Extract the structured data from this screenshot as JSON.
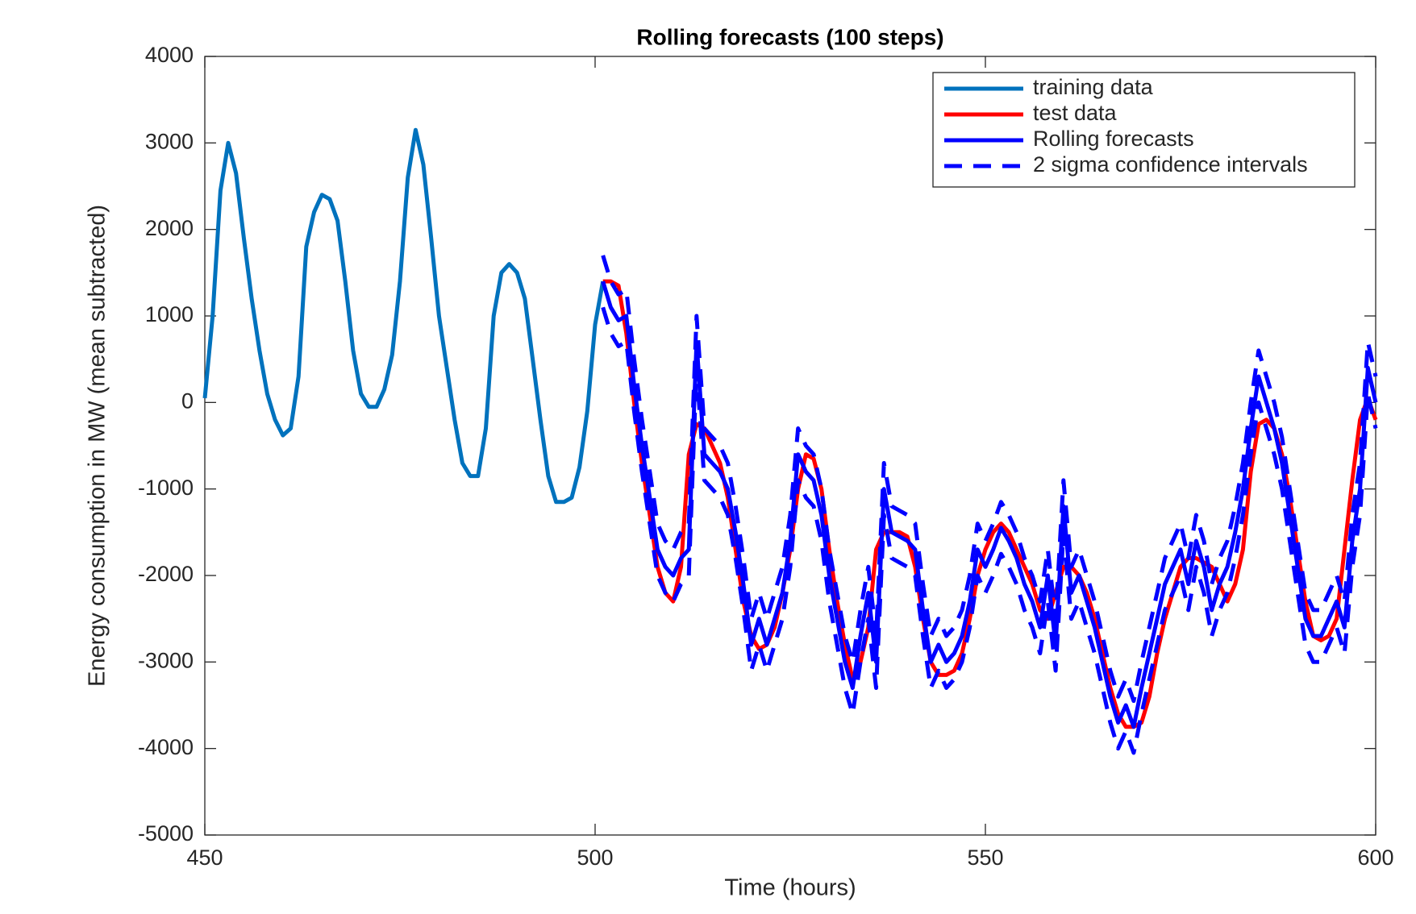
{
  "chart_data": {
    "type": "line",
    "title": "Rolling forecasts (100 steps)",
    "x_label": "Time (hours)",
    "y_label": "Energy consumption in MW (mean subtracted)",
    "xlim": [
      450,
      600
    ],
    "xticks": [
      450,
      500,
      550,
      600
    ],
    "ylim": [
      -5000,
      4000
    ],
    "yticks": [
      -5000,
      -4000,
      -3000,
      -2000,
      -1000,
      0,
      1000,
      2000,
      3000,
      4000
    ],
    "legend": "top-right",
    "x": [
      450,
      451,
      452,
      453,
      454,
      455,
      456,
      457,
      458,
      459,
      460,
      461,
      462,
      463,
      464,
      465,
      466,
      467,
      468,
      469,
      470,
      471,
      472,
      473,
      474,
      475,
      476,
      477,
      478,
      479,
      480,
      481,
      482,
      483,
      484,
      485,
      486,
      487,
      488,
      489,
      490,
      491,
      492,
      493,
      494,
      495,
      496,
      497,
      498,
      499,
      500,
      501,
      502,
      503,
      504,
      505,
      506,
      507,
      508,
      509,
      510,
      511,
      512,
      513,
      514,
      515,
      516,
      517,
      518,
      519,
      520,
      521,
      522,
      523,
      524,
      525,
      526,
      527,
      528,
      529,
      530,
      531,
      532,
      533,
      534,
      535,
      536,
      537,
      538,
      539,
      540,
      541,
      542,
      543,
      544,
      545,
      546,
      547,
      548,
      549,
      550,
      551,
      552,
      553,
      554,
      555,
      556,
      557,
      558,
      559,
      560,
      561,
      562,
      563,
      564,
      565,
      566,
      567,
      568,
      569,
      570,
      571,
      572,
      573,
      574,
      575,
      576,
      577,
      578,
      579,
      580,
      581,
      582,
      583,
      584,
      585,
      586,
      587,
      588,
      589,
      590,
      591,
      592,
      593,
      594,
      595,
      596,
      597,
      598,
      599,
      600
    ],
    "series": [
      {
        "name": "training data",
        "color": "#0072bd",
        "style": "solid",
        "values": [
          50,
          1000,
          2450,
          3000,
          2650,
          1900,
          1200,
          600,
          100,
          -200,
          -380,
          -300,
          300,
          1800,
          2200,
          2400,
          2350,
          2100,
          1400,
          600,
          100,
          -50,
          -50,
          150,
          550,
          1400,
          2600,
          3150,
          2750,
          1900,
          1000,
          400,
          -200,
          -700,
          -850,
          -850,
          -300,
          1000,
          1500,
          1600,
          1500,
          1200,
          500,
          -200,
          -850,
          -1150,
          -1150,
          -1100,
          -750,
          -100,
          900,
          1400,
          null,
          null,
          null,
          null,
          null,
          null,
          null,
          null,
          null,
          null,
          null,
          null,
          null,
          null,
          null,
          null,
          null,
          null,
          null,
          null,
          null,
          null,
          null,
          null,
          null,
          null,
          null,
          null,
          null,
          null,
          null,
          null,
          null,
          null,
          null,
          null,
          null,
          null,
          null,
          null,
          null,
          null,
          null,
          null,
          null,
          null,
          null,
          null,
          null,
          null,
          null,
          null,
          null,
          null,
          null,
          null,
          null,
          null,
          null,
          null,
          null,
          null,
          null,
          null,
          null,
          null,
          null,
          null,
          null,
          null,
          null,
          null,
          null,
          null,
          null,
          null,
          null,
          null,
          null,
          null,
          null,
          null,
          null,
          null,
          null,
          null,
          null,
          null,
          null,
          null,
          null,
          null,
          null,
          null,
          null,
          null,
          null,
          null,
          null
        ]
      },
      {
        "name": "test data",
        "color": "#ff0000",
        "style": "solid",
        "values": [
          null,
          null,
          null,
          null,
          null,
          null,
          null,
          null,
          null,
          null,
          null,
          null,
          null,
          null,
          null,
          null,
          null,
          null,
          null,
          null,
          null,
          null,
          null,
          null,
          null,
          null,
          null,
          null,
          null,
          null,
          null,
          null,
          null,
          null,
          null,
          null,
          null,
          null,
          null,
          null,
          null,
          null,
          null,
          null,
          null,
          null,
          null,
          null,
          null,
          null,
          null,
          1400,
          1400,
          1350,
          800,
          0,
          -700,
          -1300,
          -1900,
          -2200,
          -2300,
          -1900,
          -600,
          -250,
          -300,
          -500,
          -700,
          -1100,
          -1700,
          -2300,
          -2700,
          -2850,
          -2800,
          -2600,
          -2200,
          -1700,
          -1000,
          -600,
          -650,
          -1000,
          -1700,
          -2300,
          -2800,
          -3200,
          -3000,
          -2600,
          -1700,
          -1500,
          -1500,
          -1500,
          -1550,
          -1900,
          -2500,
          -3000,
          -3150,
          -3150,
          -3100,
          -2900,
          -2500,
          -2000,
          -1700,
          -1500,
          -1400,
          -1500,
          -1700,
          -1900,
          -2100,
          -2400,
          -2500,
          -2200,
          -1900,
          -1900,
          -2000,
          -2200,
          -2500,
          -2900,
          -3300,
          -3600,
          -3750,
          -3750,
          -3700,
          -3400,
          -2900,
          -2500,
          -2200,
          -1900,
          -1800,
          -1800,
          -1850,
          -1900,
          -2100,
          -2300,
          -2100,
          -1700,
          -800,
          -250,
          -200,
          -300,
          -600,
          -1100,
          -1700,
          -2300,
          -2700,
          -2750,
          -2700,
          -2500,
          -1700,
          -900,
          -200,
          50,
          -200
        ]
      },
      {
        "name": "Rolling forecasts",
        "color": "#0000ff",
        "style": "solid",
        "values": [
          null,
          null,
          null,
          null,
          null,
          null,
          null,
          null,
          null,
          null,
          null,
          null,
          null,
          null,
          null,
          null,
          null,
          null,
          null,
          null,
          null,
          null,
          null,
          null,
          null,
          null,
          null,
          null,
          null,
          null,
          null,
          null,
          null,
          null,
          null,
          null,
          null,
          null,
          null,
          null,
          null,
          null,
          null,
          null,
          null,
          null,
          null,
          null,
          null,
          null,
          null,
          1400,
          1100,
          950,
          1000,
          200,
          -500,
          -1100,
          -1700,
          -1900,
          -2000,
          -1800,
          -1700,
          700,
          -600,
          -700,
          -800,
          -1000,
          -1500,
          -2100,
          -2800,
          -2500,
          -2800,
          -2500,
          -2200,
          -1600,
          -600,
          -800,
          -900,
          -1300,
          -2000,
          -2500,
          -3000,
          -3300,
          -2700,
          -2200,
          -3000,
          -1000,
          -1500,
          -1550,
          -1600,
          -1700,
          -2400,
          -3000,
          -2800,
          -3000,
          -2900,
          -2700,
          -2300,
          -1700,
          -1900,
          -1700,
          -1450,
          -1600,
          -1800,
          -2100,
          -2300,
          -2600,
          -2000,
          -2800,
          -1200,
          -2200,
          -2000,
          -2300,
          -2600,
          -3000,
          -3400,
          -3700,
          -3500,
          -3750,
          -3300,
          -2900,
          -2500,
          -2100,
          -1900,
          -1700,
          -2100,
          -1600,
          -1900,
          -2400,
          -2100,
          -1900,
          -1500,
          -1000,
          -300,
          300,
          0,
          -300,
          -700,
          -1300,
          -1900,
          -2500,
          -2700,
          -2700,
          -2500,
          -2300,
          -2600,
          -1600,
          -1000,
          400,
          0
        ]
      },
      {
        "name": "2 sigma confidence intervals",
        "color": "#0000ff",
        "style": "dashed",
        "upper": [
          null,
          null,
          null,
          null,
          null,
          null,
          null,
          null,
          null,
          null,
          null,
          null,
          null,
          null,
          null,
          null,
          null,
          null,
          null,
          null,
          null,
          null,
          null,
          null,
          null,
          null,
          null,
          null,
          null,
          null,
          null,
          null,
          null,
          null,
          null,
          null,
          null,
          null,
          null,
          null,
          null,
          null,
          null,
          null,
          null,
          null,
          null,
          null,
          null,
          null,
          null,
          1700,
          1400,
          1250,
          1300,
          500,
          -200,
          -800,
          -1400,
          -1600,
          -1700,
          -1500,
          -1400,
          1000,
          -300,
          -400,
          -500,
          -700,
          -1200,
          -1800,
          -2500,
          -2200,
          -2500,
          -2200,
          -1900,
          -1300,
          -300,
          -500,
          -600,
          -1000,
          -1700,
          -2200,
          -2700,
          -3000,
          -2400,
          -1900,
          -2700,
          -700,
          -1200,
          -1250,
          -1300,
          -1400,
          -2100,
          -2700,
          -2500,
          -2700,
          -2600,
          -2400,
          -2000,
          -1400,
          -1600,
          -1400,
          -1150,
          -1300,
          -1500,
          -1800,
          -2000,
          -2300,
          -1700,
          -2500,
          -900,
          -1900,
          -1700,
          -2000,
          -2300,
          -2700,
          -3100,
          -3400,
          -3200,
          -3450,
          -3000,
          -2600,
          -2200,
          -1800,
          -1600,
          -1400,
          -1800,
          -1300,
          -1600,
          -2100,
          -1800,
          -1600,
          -1200,
          -700,
          0,
          600,
          300,
          0,
          -400,
          -1000,
          -1600,
          -2200,
          -2400,
          -2400,
          -2200,
          -2000,
          -2300,
          -1300,
          -700,
          700,
          300
        ],
        "lower": [
          null,
          null,
          null,
          null,
          null,
          null,
          null,
          null,
          null,
          null,
          null,
          null,
          null,
          null,
          null,
          null,
          null,
          null,
          null,
          null,
          null,
          null,
          null,
          null,
          null,
          null,
          null,
          null,
          null,
          null,
          null,
          null,
          null,
          null,
          null,
          null,
          null,
          null,
          null,
          null,
          null,
          null,
          null,
          null,
          null,
          null,
          null,
          null,
          null,
          null,
          null,
          1100,
          800,
          650,
          700,
          -100,
          -800,
          -1400,
          -2000,
          -2200,
          -2300,
          -2100,
          -2000,
          400,
          -900,
          -1000,
          -1100,
          -1300,
          -1800,
          -2400,
          -3100,
          -2800,
          -3100,
          -2800,
          -2500,
          -1900,
          -900,
          -1100,
          -1200,
          -1600,
          -2300,
          -2800,
          -3300,
          -3600,
          -3000,
          -2500,
          -3300,
          -1300,
          -1800,
          -1850,
          -1900,
          -2000,
          -2700,
          -3300,
          -3100,
          -3300,
          -3200,
          -3000,
          -2600,
          -2000,
          -2200,
          -2000,
          -1750,
          -1900,
          -2100,
          -2400,
          -2600,
          -2900,
          -2300,
          -3100,
          -1500,
          -2500,
          -2300,
          -2600,
          -2900,
          -3300,
          -3700,
          -4000,
          -3800,
          -4050,
          -3600,
          -3200,
          -2800,
          -2400,
          -2200,
          -2000,
          -2400,
          -1900,
          -2200,
          -2700,
          -2400,
          -2200,
          -1800,
          -1300,
          -600,
          0,
          -300,
          -600,
          -1000,
          -1600,
          -2200,
          -2800,
          -3000,
          -3000,
          -2800,
          -2600,
          -2900,
          -1900,
          -1300,
          100,
          -300
        ]
      }
    ]
  }
}
